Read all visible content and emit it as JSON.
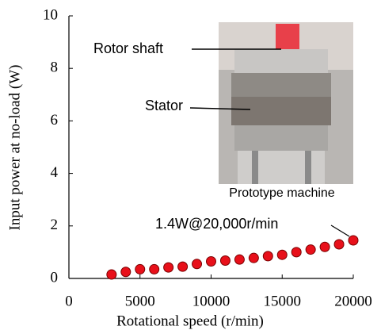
{
  "chart_data": {
    "type": "scatter",
    "x_label": "Rotational speed (r/min)",
    "y_label": "Input power at no-load (W)",
    "x": [
      3000,
      4000,
      5000,
      6000,
      7000,
      8000,
      9000,
      10000,
      11000,
      12000,
      13000,
      14000,
      15000,
      16000,
      17000,
      18000,
      19000,
      20000
    ],
    "values": [
      0.15,
      0.25,
      0.35,
      0.35,
      0.42,
      0.45,
      0.55,
      0.65,
      0.68,
      0.72,
      0.78,
      0.85,
      0.9,
      1.0,
      1.1,
      1.2,
      1.3,
      1.45
    ],
    "color": "#e8101a",
    "xlim": [
      0,
      20000
    ],
    "xticks": [
      0,
      5000,
      10000,
      15000,
      20000
    ],
    "ylim": [
      0,
      10
    ],
    "yticks": [
      0,
      2,
      4,
      6,
      8,
      10
    ],
    "annotations": [
      "Rotor shaft",
      "Stator",
      "Prototype machine",
      "1.4W@20,000r/min"
    ]
  }
}
